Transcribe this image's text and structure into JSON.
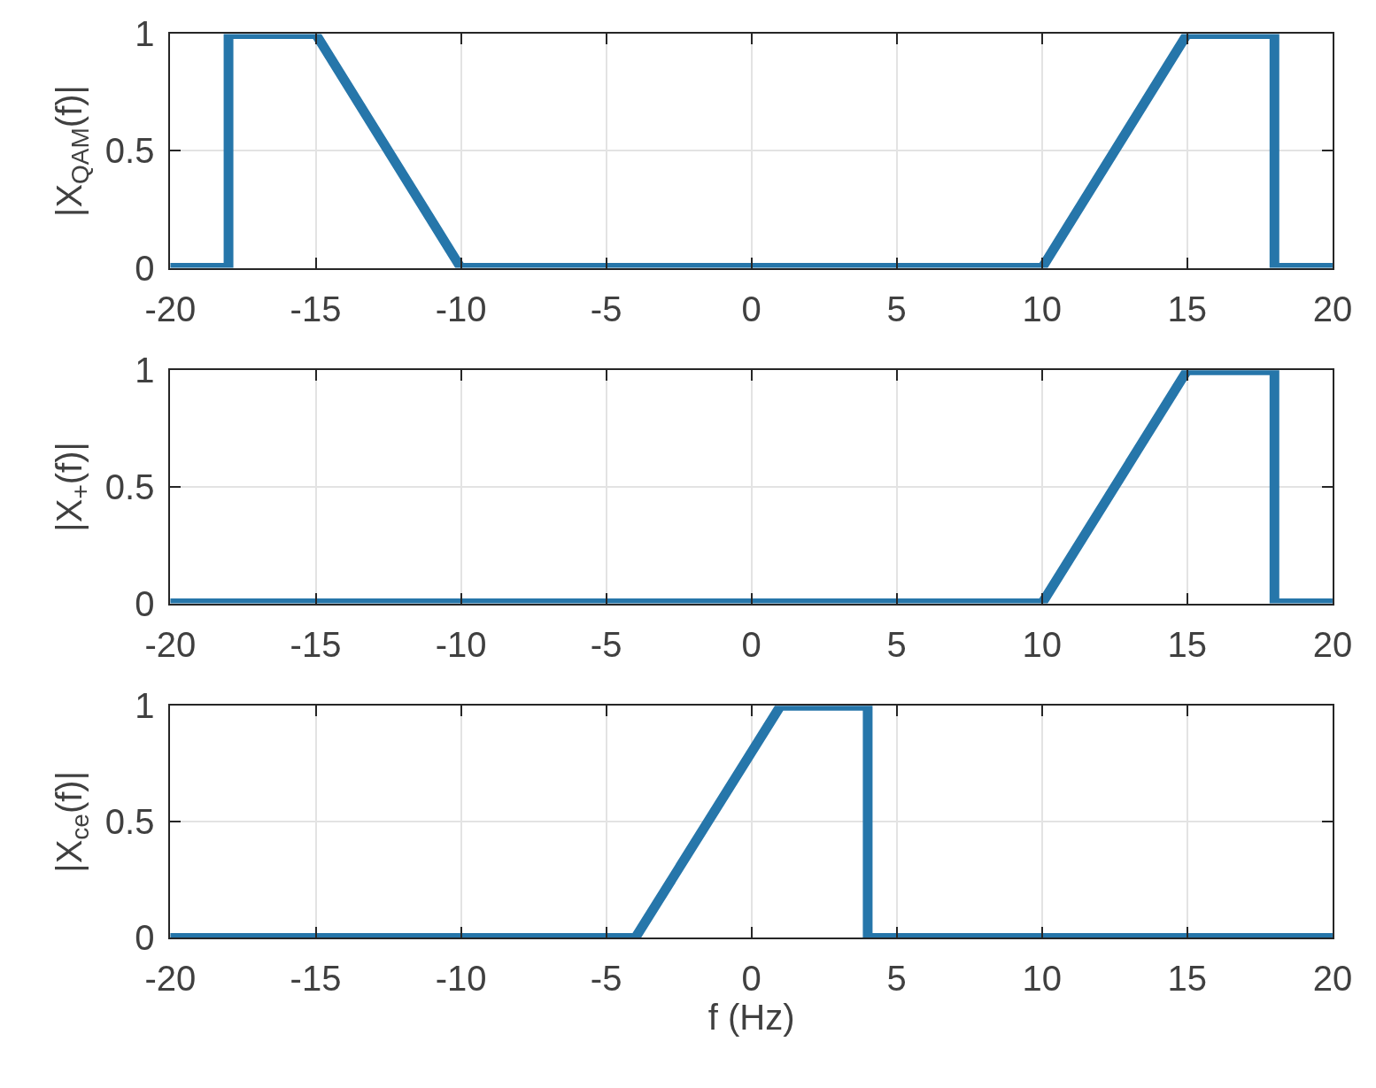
{
  "chart_data": [
    {
      "type": "line",
      "ylabel": "|X$_{QAM}$(f)|",
      "x": [
        -20,
        -18,
        -18,
        -15,
        -10,
        10,
        15,
        18,
        18,
        20
      ],
      "values": [
        0,
        0,
        1,
        1,
        0,
        0,
        1,
        1,
        0,
        0
      ],
      "color": "#2676aa",
      "line_style": "solid",
      "xlim": [
        -20,
        20
      ],
      "xticks": [
        -20,
        -15,
        -10,
        -5,
        0,
        5,
        10,
        15,
        20
      ],
      "ylim": [
        0,
        1
      ],
      "yticks": [
        0,
        0.5,
        1
      ],
      "grid": true
    },
    {
      "type": "line",
      "ylabel": "|X$_{+}$(f)|",
      "x": [
        -20,
        10,
        15,
        18,
        18,
        20
      ],
      "values": [
        0,
        0,
        1,
        1,
        0,
        0
      ],
      "color": "#2676aa",
      "line_style": "solid",
      "xlim": [
        -20,
        20
      ],
      "xticks": [
        -20,
        -15,
        -10,
        -5,
        0,
        5,
        10,
        15,
        20
      ],
      "ylim": [
        0,
        1
      ],
      "yticks": [
        0,
        0.5,
        1
      ],
      "grid": true
    },
    {
      "type": "line",
      "ylabel": "|X$_{ce}$(f)|",
      "xlabel": "f (Hz)",
      "x": [
        -20,
        -4,
        1,
        4,
        4,
        20
      ],
      "values": [
        0,
        0,
        1,
        1,
        0,
        0
      ],
      "color": "#2676aa",
      "line_style": "solid",
      "xlim": [
        -20,
        20
      ],
      "xticks": [
        -20,
        -15,
        -10,
        -5,
        0,
        5,
        10,
        15,
        20
      ],
      "ylim": [
        0,
        1
      ],
      "yticks": [
        0,
        0.5,
        1
      ],
      "grid": true
    }
  ]
}
